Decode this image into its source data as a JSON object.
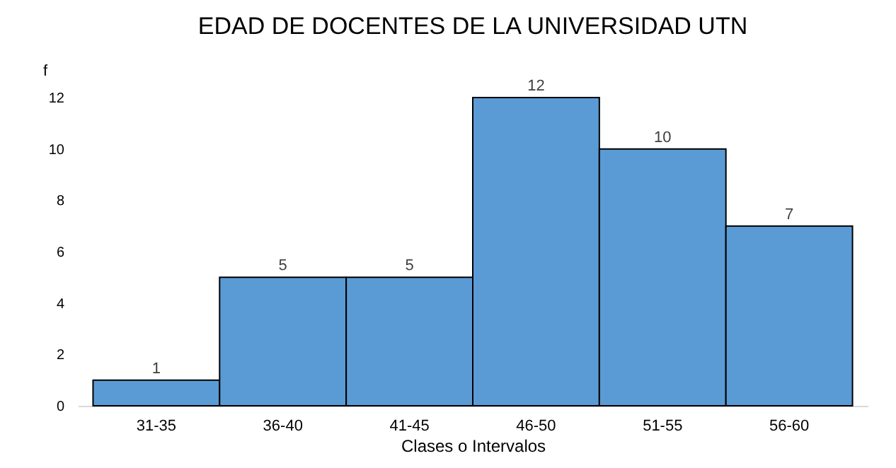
{
  "chart_data": {
    "type": "bar",
    "title": "EDAD DE DOCENTES DE LA UNIVERSIDAD UTN",
    "xlabel": "Clases o Intervalos",
    "ylabel": "f",
    "categories": [
      "31-35",
      "36-40",
      "41-45",
      "46-50",
      "51-55",
      "56-60"
    ],
    "values": [
      1,
      5,
      5,
      12,
      10,
      7
    ],
    "color": "#5b9bd5",
    "data_labels": true,
    "ylim": [
      0,
      12
    ],
    "yticks": [
      0,
      2,
      4,
      6,
      8,
      10,
      12
    ],
    "grid": false
  }
}
